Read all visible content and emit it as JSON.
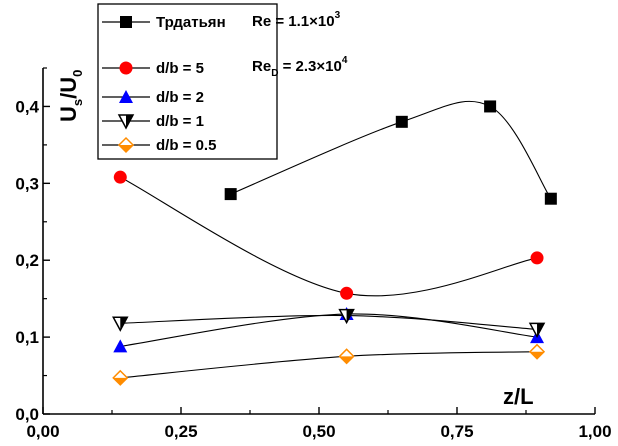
{
  "chart_data": {
    "type": "scatter",
    "xlabel": "z/L",
    "ylabel_main": "U",
    "ylabel_sub": "s",
    "ylabel_sep": "/U",
    "ylabel_sub2": "0",
    "xlim": [
      0.0,
      1.0
    ],
    "ylim": [
      0.0,
      0.45
    ],
    "xticks": [
      0.0,
      0.25,
      0.5,
      0.75,
      1.0
    ],
    "xtick_labels": [
      "0,00",
      "0,25",
      "0,50",
      "0,75",
      "1,00"
    ],
    "yticks": [
      0.0,
      0.1,
      0.2,
      0.3,
      0.4
    ],
    "ytick_labels": [
      "0,0",
      "0,1",
      "0,2",
      "0,3",
      "0,4"
    ],
    "grid": false,
    "legend_position": "top-left",
    "annotation_re": {
      "prefix": "Re = 1.1×10",
      "exp": "3"
    },
    "annotation_red": {
      "prefix": "Re",
      "sub": "D",
      "mid": " = 2.3×10",
      "exp": "4"
    },
    "series": [
      {
        "name": "Трдатьян",
        "marker": "square",
        "color": "#000000",
        "fill": "#000000",
        "x": [
          0.34,
          0.65,
          0.81,
          0.92
        ],
        "y": [
          0.286,
          0.38,
          0.4,
          0.28
        ]
      },
      {
        "name": "d/b = 5",
        "marker": "circle",
        "color": "#ff0000",
        "fill": "#ff0000",
        "x": [
          0.14,
          0.55,
          0.895
        ],
        "y": [
          0.308,
          0.157,
          0.203
        ]
      },
      {
        "name": "d/b = 2",
        "marker": "triangle-up",
        "color": "#0000ff",
        "fill": "#0000ff",
        "x": [
          0.14,
          0.55,
          0.895
        ],
        "y": [
          0.088,
          0.13,
          0.1
        ]
      },
      {
        "name": "d/b = 1",
        "marker": "triangle-down",
        "color": "#000000",
        "fill": "half",
        "x": [
          0.14,
          0.55,
          0.895
        ],
        "y": [
          0.118,
          0.128,
          0.11
        ]
      },
      {
        "name": "d/b = 0.5",
        "marker": "diamond",
        "color": "#ff8c00",
        "fill": "half",
        "x": [
          0.14,
          0.55,
          0.895
        ],
        "y": [
          0.047,
          0.075,
          0.081
        ]
      }
    ]
  }
}
